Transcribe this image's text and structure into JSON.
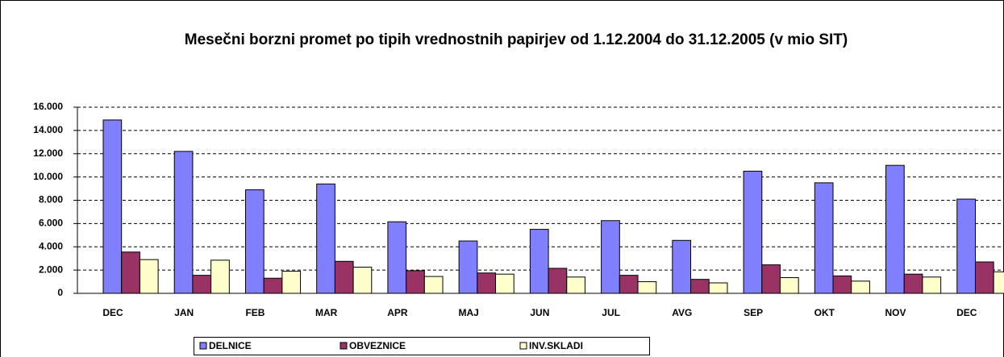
{
  "chart_data": {
    "type": "bar",
    "title": "Mesečni borzni promet po tipih vrednostnih papirjev od 1.12.2004 do 31.12.2005 (v mio SIT)",
    "categories": [
      "DEC",
      "JAN",
      "FEB",
      "MAR",
      "APR",
      "MAJ",
      "JUN",
      "JUL",
      "AVG",
      "SEP",
      "OKT",
      "NOV",
      "DEC"
    ],
    "series": [
      {
        "name": "DELNICE",
        "color": "#8080ff",
        "values": [
          14900,
          12200,
          8900,
          9400,
          6150,
          4500,
          5500,
          6250,
          4550,
          10500,
          9500,
          11000,
          8100
        ]
      },
      {
        "name": "OBVEZNICE",
        "color": "#993366",
        "values": [
          3550,
          1550,
          1300,
          2750,
          1950,
          1750,
          2150,
          1550,
          1200,
          2450,
          1500,
          1650,
          2700
        ]
      },
      {
        "name": "INV.SKLADI",
        "color": "#ffffcc",
        "values": [
          2900,
          2850,
          1900,
          2250,
          1450,
          1650,
          1400,
          1000,
          900,
          1350,
          1050,
          1400,
          1850
        ]
      }
    ],
    "ylim": [
      0,
      16000
    ],
    "yticks": [
      0,
      {
        "value": 2000,
        "label": "2.000"
      },
      {
        "value": 4000,
        "label": "4.000"
      },
      {
        "value": 6000,
        "label": "6.000"
      },
      {
        "value": 8000,
        "label": "8.000"
      },
      {
        "value": 10000,
        "label": "10.000"
      },
      {
        "value": 12000,
        "label": "12.000"
      },
      {
        "value": 14000,
        "label": "14.000"
      },
      {
        "value": 16000,
        "label": "16.000"
      }
    ],
    "grid": true,
    "legend": "bottom"
  }
}
